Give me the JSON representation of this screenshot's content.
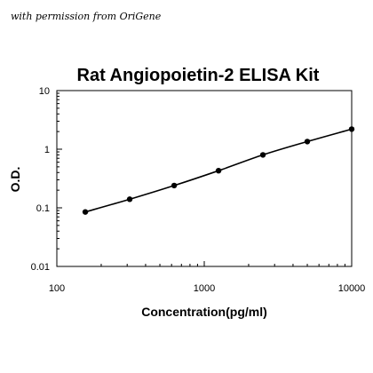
{
  "credit": "with permission from OriGene",
  "chart_data": {
    "type": "line",
    "title": "Rat Angiopoietin-2 ELISA Kit",
    "xlabel": "Concentration(pg/ml)",
    "ylabel": "O.D.",
    "x_scale": "log",
    "y_scale": "log",
    "xlim": [
      100,
      10000
    ],
    "ylim": [
      0.01,
      10
    ],
    "x_ticks": [
      100,
      1000,
      10000
    ],
    "x_tick_labels": [
      "100",
      "1000",
      "10000"
    ],
    "y_ticks": [
      0.01,
      0.1,
      1,
      10
    ],
    "y_tick_labels": [
      "0.01",
      "0.1",
      "1",
      "10"
    ],
    "grid": false,
    "series": [
      {
        "x": [
          156,
          312,
          625,
          1250,
          2500,
          5000,
          10000
        ],
        "y": [
          0.085,
          0.14,
          0.24,
          0.43,
          0.8,
          1.35,
          2.2
        ]
      }
    ]
  }
}
